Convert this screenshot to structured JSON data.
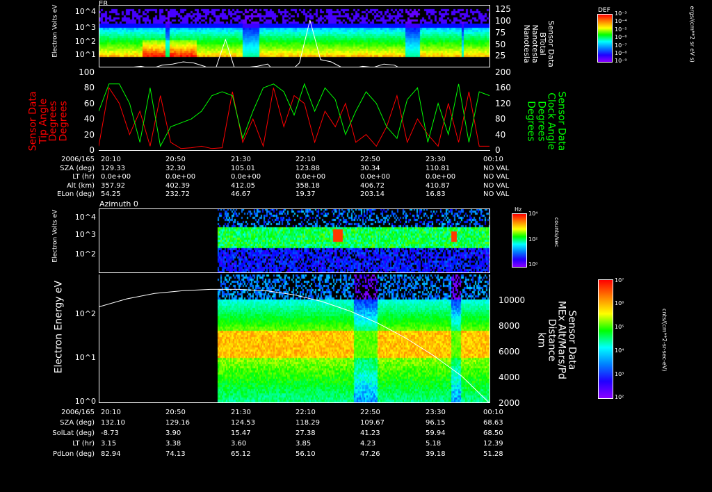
{
  "chart_data": [
    {
      "type": "heatmap",
      "title": "ER",
      "ylabel": "Electron Volts\neV",
      "yscale": "log",
      "y_ticks": [
        "10^1",
        "10^2",
        "10^3",
        "10^4"
      ],
      "right_axis": {
        "label": [
          "Sensor Data",
          "BTotal",
          "Nanotesla",
          "Nanotesla"
        ],
        "ticks": [
          "25",
          "50",
          "75",
          "100",
          "125"
        ],
        "range": [
          25,
          125
        ]
      },
      "colorbar": {
        "title": "DEF",
        "unit": "ergs/(cm**2 sr eV s)",
        "ticks": [
          "10^-3",
          "10^-4",
          "10^-5",
          "10^-6",
          "10^-7",
          "10^-8",
          "10^-9"
        ]
      },
      "btotal_series": [
        5,
        8,
        14,
        20,
        22,
        18,
        24,
        26,
        30,
        28,
        22,
        14,
        70,
        10,
        20,
        22,
        26,
        6,
        10,
        28,
        105,
        34,
        30,
        20,
        18,
        22,
        20,
        26,
        24,
        14,
        20,
        10,
        18,
        8,
        14,
        6,
        5,
        4
      ]
    },
    {
      "type": "line",
      "ylabel_left": [
        "Sensor Data",
        "Tip Angle",
        "Degrees",
        "Degrees"
      ],
      "ylabel_right": [
        "Sensor Data",
        "Clock Angle",
        "Degrees",
        "Degrees"
      ],
      "ylim_left": [
        0,
        100
      ],
      "ylim_right": [
        0,
        200
      ],
      "left_ticks": [
        "0",
        "20",
        "40",
        "60",
        "80",
        "100"
      ],
      "right_ticks": [
        "0",
        "40",
        "80",
        "120",
        "160",
        "200"
      ],
      "series": [
        {
          "name": "Tip Angle",
          "color": "#ff0000",
          "values": [
            5,
            80,
            60,
            20,
            50,
            5,
            70,
            10,
            2,
            3,
            5,
            2,
            3,
            75,
            10,
            40,
            5,
            80,
            30,
            70,
            60,
            10,
            50,
            30,
            60,
            10,
            20,
            5,
            30,
            70,
            10,
            40,
            20,
            5,
            60,
            10,
            75,
            5,
            5
          ]
        },
        {
          "name": "Clock Angle",
          "color": "#00ff00",
          "values": [
            100,
            170,
            170,
            120,
            20,
            160,
            10,
            60,
            70,
            80,
            100,
            140,
            150,
            140,
            30,
            100,
            160,
            170,
            150,
            90,
            170,
            100,
            160,
            130,
            40,
            100,
            150,
            120,
            60,
            30,
            130,
            160,
            20,
            120,
            40,
            170,
            20,
            150,
            140
          ]
        }
      ]
    },
    {
      "type": "heatmap",
      "title": "Azimuth 0",
      "ylabel": "Electron Volts\neV",
      "yscale": "log",
      "y_ticks": [
        "10^2",
        "10^3",
        "10^4"
      ],
      "colorbar": {
        "title": "Hz",
        "unit": "counts/sec",
        "ticks": [
          "10^4",
          "10^2",
          "10^0"
        ]
      }
    },
    {
      "type": "heatmap",
      "ylabel": "Electron Energy\neV",
      "yscale": "log",
      "y_ticks": [
        "10^0",
        "10^1",
        "10^2"
      ],
      "right_axis": {
        "label": [
          "Sensor Data",
          "MEx Alt/Mars/Pd",
          "Distance",
          "km"
        ],
        "ticks": [
          "2000",
          "4000",
          "6000",
          "8000",
          "10000"
        ],
        "range": [
          2000,
          11500
        ]
      },
      "colorbar": {
        "unit": "cnts/(cm**2-sr-sec-eV)",
        "ticks": [
          "10^7",
          "10^6",
          "10^5",
          "10^4",
          "10^3",
          "10^2"
        ]
      },
      "altitude_series": [
        9100,
        9700,
        10100,
        10300,
        10400,
        10400,
        10300,
        10000,
        9500,
        8800,
        7900,
        6800,
        5500,
        4000,
        2000
      ]
    }
  ],
  "table1": {
    "rows": [
      {
        "label": "2006/165",
        "values": [
          "20:10",
          "20:50",
          "21:30",
          "22:10",
          "22:50",
          "23:30",
          "00:10"
        ]
      },
      {
        "label": "SZA (deg)",
        "values": [
          "129.33",
          "32.30",
          "105.01",
          "123.88",
          "30.34",
          "110.81",
          "NO VAL"
        ]
      },
      {
        "label": "LT (hr)",
        "values": [
          "0.0e+00",
          "0.0e+00",
          "0.0e+00",
          "0.0e+00",
          "0.0e+00",
          "0.0e+00",
          "NO VAL"
        ]
      },
      {
        "label": "Alt (km)",
        "values": [
          "357.92",
          "402.39",
          "412.05",
          "358.18",
          "406.72",
          "410.87",
          "NO VAL"
        ]
      },
      {
        "label": "ELon (deg)",
        "values": [
          "54.25",
          "232.72",
          "46.67",
          "19.37",
          "203.14",
          "16.83",
          "NO VAL"
        ]
      }
    ]
  },
  "table2": {
    "rows": [
      {
        "label": "2006/165",
        "values": [
          "20:10",
          "20:50",
          "21:30",
          "22:10",
          "22:50",
          "23:30",
          "00:10"
        ]
      },
      {
        "label": "SZA (deg)",
        "values": [
          "132.10",
          "129.16",
          "124.53",
          "118.29",
          "109.67",
          "96.15",
          "68.63"
        ]
      },
      {
        "label": "SolLat (deg)",
        "values": [
          "-8.73",
          "3.90",
          "15.47",
          "27.38",
          "41.23",
          "59.94",
          "68.50"
        ]
      },
      {
        "label": "LT (hr)",
        "values": [
          "3.15",
          "3.38",
          "3.60",
          "3.85",
          "4.23",
          "5.18",
          "12.39"
        ]
      },
      {
        "label": "PdLon (deg)",
        "values": [
          "82.94",
          "74.13",
          "65.12",
          "56.10",
          "47.26",
          "39.18",
          "51.28"
        ]
      }
    ]
  }
}
